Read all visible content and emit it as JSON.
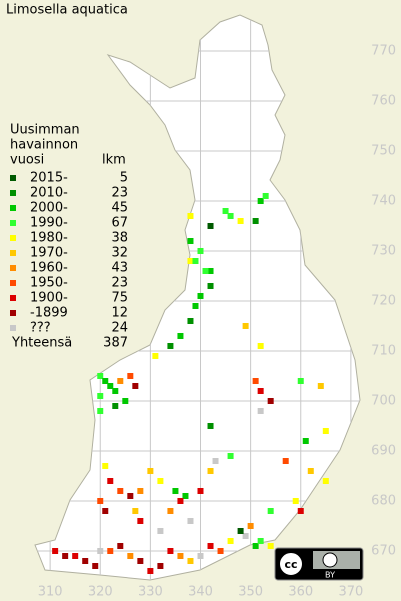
{
  "map": {
    "title": "Limosella aquatica",
    "legend": {
      "heading": [
        "Uusimman",
        "havainnon",
        "vuosi"
      ],
      "count_heading": "lkm",
      "entries": [
        {
          "label": "2015-",
          "count": 5,
          "color": "#005a00"
        },
        {
          "label": "2010-",
          "count": 23,
          "color": "#009000"
        },
        {
          "label": "2000-",
          "count": 45,
          "color": "#00c800"
        },
        {
          "label": "1990-",
          "count": 67,
          "color": "#30ff30"
        },
        {
          "label": "1980-",
          "count": 38,
          "color": "#ffff00"
        },
        {
          "label": "1970-",
          "count": 32,
          "color": "#ffc800"
        },
        {
          "label": "1960-",
          "count": 43,
          "color": "#ff8c00"
        },
        {
          "label": "1950-",
          "count": 23,
          "color": "#ff4a00"
        },
        {
          "label": "1900-",
          "count": 75,
          "color": "#dc0000"
        },
        {
          "label": "-1899",
          "count": 12,
          "color": "#a00000"
        },
        {
          "label": "???",
          "count": 24,
          "color": "#c8c8c8"
        }
      ],
      "total_label": "Yhteensä",
      "total": 387
    },
    "xlim": [
      300,
      380
    ],
    "ylim": [
      661,
      780
    ],
    "xticks": [
      310,
      320,
      330,
      340,
      350,
      360,
      370
    ],
    "yticks": [
      670,
      680,
      690,
      700,
      710,
      720,
      730,
      740,
      750,
      760,
      770
    ],
    "cells": [
      [
        342,
        735,
        0
      ],
      [
        338,
        737,
        4
      ],
      [
        345,
        738,
        3
      ],
      [
        346,
        737,
        3
      ],
      [
        348,
        736,
        4
      ],
      [
        351,
        736,
        1
      ],
      [
        352,
        740,
        2
      ],
      [
        353,
        741,
        3
      ],
      [
        334,
        711,
        1
      ],
      [
        336,
        713,
        2
      ],
      [
        338,
        716,
        1
      ],
      [
        339,
        719,
        2
      ],
      [
        340,
        721,
        2
      ],
      [
        342,
        723,
        1
      ],
      [
        342,
        726,
        2
      ],
      [
        338,
        728,
        4
      ],
      [
        339,
        728,
        3
      ],
      [
        341,
        726,
        3
      ],
      [
        340,
        730,
        3
      ],
      [
        338,
        732,
        2
      ],
      [
        331,
        709,
        4
      ],
      [
        349,
        715,
        5
      ],
      [
        352,
        711,
        4
      ],
      [
        320,
        705,
        3
      ],
      [
        321,
        704,
        2
      ],
      [
        322,
        703,
        2
      ],
      [
        323,
        702,
        2
      ],
      [
        320,
        701,
        3
      ],
      [
        324,
        704,
        6
      ],
      [
        326,
        705,
        7
      ],
      [
        327,
        703,
        9
      ],
      [
        325,
        700,
        2
      ],
      [
        320,
        698,
        3
      ],
      [
        323,
        699,
        1
      ],
      [
        351,
        704,
        7
      ],
      [
        352,
        702,
        8
      ],
      [
        354,
        700,
        9
      ],
      [
        352,
        698,
        10
      ],
      [
        360,
        704,
        3
      ],
      [
        364,
        703,
        5
      ],
      [
        361,
        692,
        2
      ],
      [
        365,
        694,
        4
      ],
      [
        342,
        695,
        1
      ],
      [
        346,
        689,
        3
      ],
      [
        357,
        688,
        7
      ],
      [
        362,
        686,
        5
      ],
      [
        365,
        684,
        4
      ],
      [
        321,
        687,
        4
      ],
      [
        322,
        684,
        8
      ],
      [
        324,
        682,
        7
      ],
      [
        326,
        681,
        9
      ],
      [
        328,
        682,
        6
      ],
      [
        330,
        686,
        5
      ],
      [
        332,
        684,
        4
      ],
      [
        335,
        682,
        2
      ],
      [
        337,
        681,
        2
      ],
      [
        336,
        680,
        8
      ],
      [
        338,
        676,
        10
      ],
      [
        340,
        682,
        8
      ],
      [
        342,
        686,
        5
      ],
      [
        343,
        688,
        10
      ],
      [
        320,
        680,
        7
      ],
      [
        321,
        678,
        9
      ],
      [
        327,
        678,
        5
      ],
      [
        328,
        676,
        8
      ],
      [
        332,
        674,
        10
      ],
      [
        334,
        678,
        6
      ],
      [
        311,
        670,
        8
      ],
      [
        313,
        669,
        9
      ],
      [
        315,
        669,
        8
      ],
      [
        317,
        668,
        9
      ],
      [
        319,
        667,
        9
      ],
      [
        320,
        670,
        10
      ],
      [
        322,
        670,
        7
      ],
      [
        324,
        671,
        9
      ],
      [
        326,
        669,
        6
      ],
      [
        328,
        668,
        9
      ],
      [
        330,
        666,
        8
      ],
      [
        332,
        667,
        9
      ],
      [
        334,
        670,
        8
      ],
      [
        336,
        669,
        6
      ],
      [
        338,
        668,
        5
      ],
      [
        340,
        669,
        10
      ],
      [
        342,
        671,
        8
      ],
      [
        344,
        670,
        7
      ],
      [
        346,
        672,
        4
      ],
      [
        349,
        673,
        10
      ],
      [
        351,
        671,
        2
      ],
      [
        352,
        672,
        3
      ],
      [
        354,
        671,
        4
      ],
      [
        350,
        675,
        6
      ],
      [
        348,
        674,
        0
      ],
      [
        354,
        678,
        3
      ],
      [
        360,
        678,
        8
      ],
      [
        359,
        680,
        4
      ]
    ],
    "license": {
      "badge": "cc",
      "label": "BY"
    }
  }
}
